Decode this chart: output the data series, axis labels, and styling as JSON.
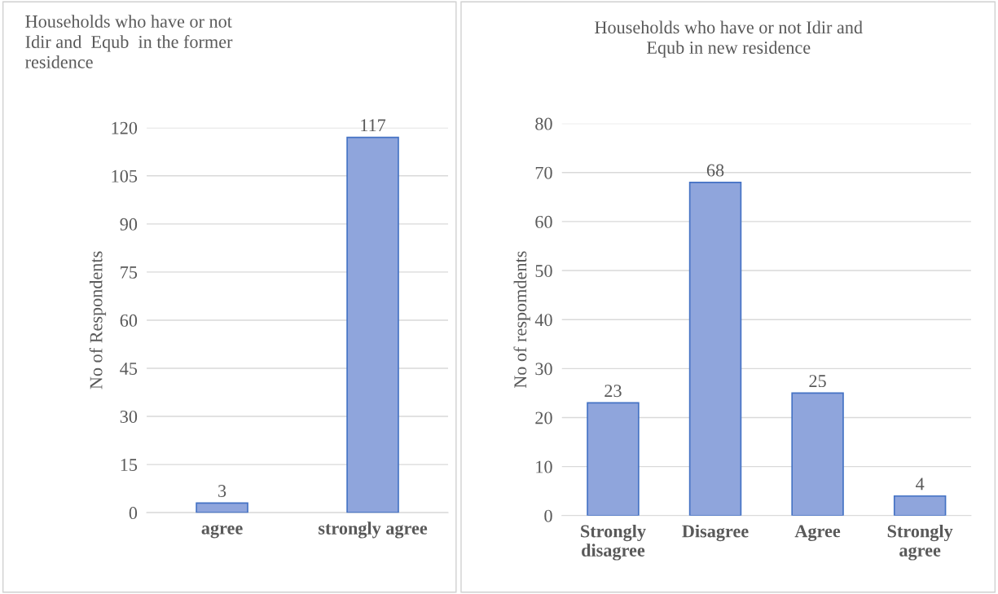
{
  "chart_data": [
    {
      "type": "bar",
      "title": "Households who have or not\nIdir and  Equb  in the former\nresidence",
      "ylabel": "No of Respondents",
      "categories": [
        "agree",
        "strongly agree"
      ],
      "values": [
        3,
        117
      ],
      "color": "#8fa5dc",
      "ylim": [
        0,
        120
      ],
      "yticks": [
        0,
        15,
        30,
        45,
        60,
        75,
        90,
        105,
        120
      ],
      "grid": "y",
      "data_labels": true
    },
    {
      "type": "bar",
      "title": "Households who have or not Idir and\nEqub in new residence",
      "ylabel": "No of respomdents",
      "categories": [
        "Strongly\ndisagree",
        "Disagree",
        "Agree",
        "Strongly\nagree"
      ],
      "values": [
        23,
        68,
        25,
        4
      ],
      "color": "#8fa5dc",
      "ylim": [
        0,
        80
      ],
      "yticks": [
        0,
        10,
        20,
        30,
        40,
        50,
        60,
        70,
        80
      ],
      "grid": "y",
      "data_labels": true
    }
  ]
}
